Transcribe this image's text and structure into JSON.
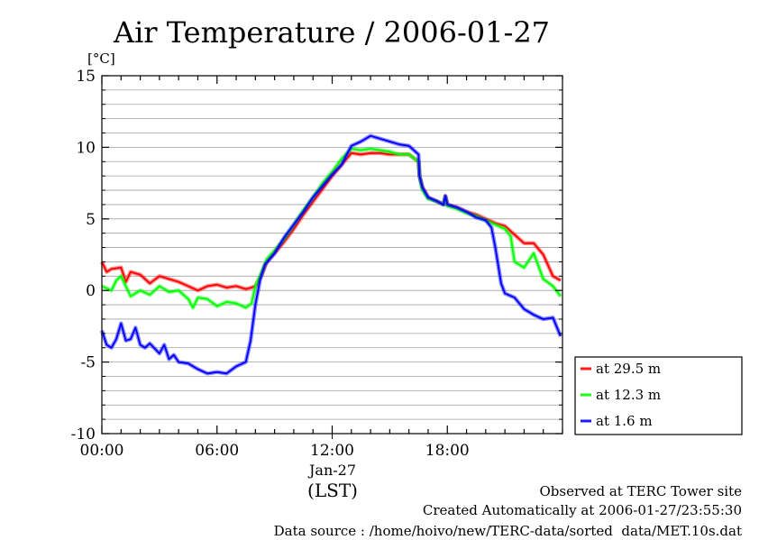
{
  "chart_data": {
    "type": "line",
    "title": "Air Temperature / 2006-01-27",
    "y_unit_label": "[°C]",
    "ylim": [
      -10,
      15
    ],
    "y_ticks": [
      -10,
      -5,
      0,
      5,
      10,
      15
    ],
    "y_tick_labels": [
      "-10",
      "-5",
      "0",
      "5",
      "10",
      "15"
    ],
    "xlim": [
      0,
      24
    ],
    "x_ticks": [
      0,
      6,
      12,
      18
    ],
    "x_tick_labels": [
      "00:00",
      "06:00",
      "12:00",
      "18:00"
    ],
    "x_date_label": "Jan-27",
    "x_date_label_at": 12,
    "x_axis_label": "(LST)",
    "grid": "horizontal",
    "legend_position": "right",
    "series": [
      {
        "name": "at 29.5 m",
        "color": "#ff0000",
        "x": [
          0,
          0.25,
          0.5,
          1,
          1.25,
          1.5,
          2,
          2.5,
          3,
          3.5,
          4,
          4.5,
          5,
          5.5,
          6,
          6.5,
          7,
          7.5,
          7.8,
          8,
          8.3,
          8.6,
          9,
          9.5,
          10,
          10.5,
          11,
          11.5,
          12,
          12.5,
          13,
          13.5,
          14,
          14.5,
          15,
          15.5,
          16,
          16.5,
          16.55,
          16.7,
          17,
          17.5,
          17.8,
          17.9,
          18,
          18.5,
          19,
          19.5,
          20,
          20.5,
          21,
          21.5,
          22,
          22.5,
          23,
          23.5,
          23.9
        ],
        "y": [
          2.0,
          1.3,
          1.5,
          1.6,
          0.6,
          1.3,
          1.1,
          0.5,
          1.0,
          0.8,
          0.6,
          0.3,
          0.0,
          0.3,
          0.4,
          0.2,
          0.3,
          0.1,
          0.2,
          0.3,
          1.0,
          2.0,
          2.6,
          3.4,
          4.3,
          5.3,
          6.2,
          7.1,
          8.0,
          8.8,
          9.6,
          9.5,
          9.6,
          9.6,
          9.5,
          9.5,
          9.5,
          9.0,
          8.0,
          7.2,
          6.5,
          6.2,
          6.0,
          6.6,
          6.0,
          5.8,
          5.5,
          5.3,
          5.0,
          4.7,
          4.5,
          3.9,
          3.3,
          3.3,
          2.5,
          1.0,
          0.7
        ]
      },
      {
        "name": "at 12.3 m",
        "color": "#00ff00",
        "x": [
          0,
          0.5,
          0.75,
          1,
          1.25,
          1.5,
          2,
          2.5,
          3,
          3.5,
          4,
          4.5,
          4.75,
          5,
          5.5,
          6,
          6.5,
          7,
          7.5,
          7.8,
          8,
          8.3,
          8.6,
          9,
          9.5,
          10,
          10.5,
          11,
          11.5,
          12,
          12.5,
          13,
          13.5,
          14,
          14.5,
          15,
          15.5,
          16,
          16.5,
          16.55,
          16.7,
          17,
          17.5,
          17.8,
          17.9,
          18,
          18.5,
          19,
          19.5,
          20,
          20.5,
          21,
          21.3,
          21.5,
          22,
          22.5,
          23,
          23.5,
          23.9
        ],
        "y": [
          0.3,
          0.0,
          0.7,
          1.0,
          0.3,
          -0.4,
          0.0,
          -0.3,
          0.3,
          -0.1,
          0.0,
          -0.6,
          -1.2,
          -0.5,
          -0.6,
          -1.1,
          -0.8,
          -0.9,
          -1.2,
          -0.9,
          0.3,
          1.2,
          2.2,
          2.8,
          3.6,
          4.6,
          5.6,
          6.5,
          7.5,
          8.3,
          9.2,
          9.9,
          9.8,
          9.9,
          9.8,
          9.7,
          9.5,
          9.5,
          9.0,
          8.0,
          7.0,
          6.4,
          6.2,
          6.0,
          6.5,
          5.9,
          5.7,
          5.4,
          5.2,
          4.9,
          4.6,
          4.3,
          3.8,
          2.0,
          1.6,
          2.6,
          0.8,
          0.3,
          -0.4
        ]
      },
      {
        "name": "at 1.6 m",
        "color": "#0000ff",
        "x": [
          0,
          0.25,
          0.5,
          0.75,
          1,
          1.25,
          1.5,
          1.75,
          2,
          2.25,
          2.5,
          3,
          3.25,
          3.5,
          3.75,
          4,
          4.5,
          5,
          5.5,
          6,
          6.5,
          7,
          7.5,
          7.75,
          8,
          8.25,
          8.5,
          9,
          9.5,
          10,
          10.5,
          11,
          11.5,
          12,
          12.5,
          13,
          13.5,
          14,
          14.5,
          15,
          15.5,
          16,
          16.5,
          16.55,
          16.7,
          17,
          17.5,
          17.8,
          17.9,
          18,
          18.5,
          19,
          19.5,
          20,
          20.3,
          20.5,
          20.8,
          21,
          21.5,
          22,
          22.5,
          23,
          23.5,
          23.9
        ],
        "y": [
          -2.8,
          -3.8,
          -4.0,
          -3.4,
          -2.3,
          -3.5,
          -3.4,
          -2.6,
          -3.8,
          -4.0,
          -3.7,
          -4.4,
          -3.8,
          -4.8,
          -4.5,
          -5.0,
          -5.1,
          -5.5,
          -5.8,
          -5.7,
          -5.8,
          -5.3,
          -5.0,
          -3.5,
          -1.0,
          0.8,
          1.8,
          2.6,
          3.7,
          4.6,
          5.5,
          6.5,
          7.3,
          8.1,
          8.8,
          10.1,
          10.4,
          10.8,
          10.6,
          10.4,
          10.2,
          10.1,
          9.5,
          8.0,
          7.2,
          6.5,
          6.2,
          6.0,
          6.6,
          6.0,
          5.8,
          5.5,
          5.1,
          4.9,
          4.4,
          3.0,
          0.5,
          -0.2,
          -0.5,
          -1.3,
          -1.7,
          -2.0,
          -1.9,
          -3.2
        ]
      }
    ],
    "footer": {
      "line1": "Observed at TERC Tower site",
      "line2": "Created Automatically at 2006-01-27/23:55:30",
      "line3": "Data source : /home/hoivo/new/TERC-data/sorted  data/MET.10s.dat"
    }
  }
}
